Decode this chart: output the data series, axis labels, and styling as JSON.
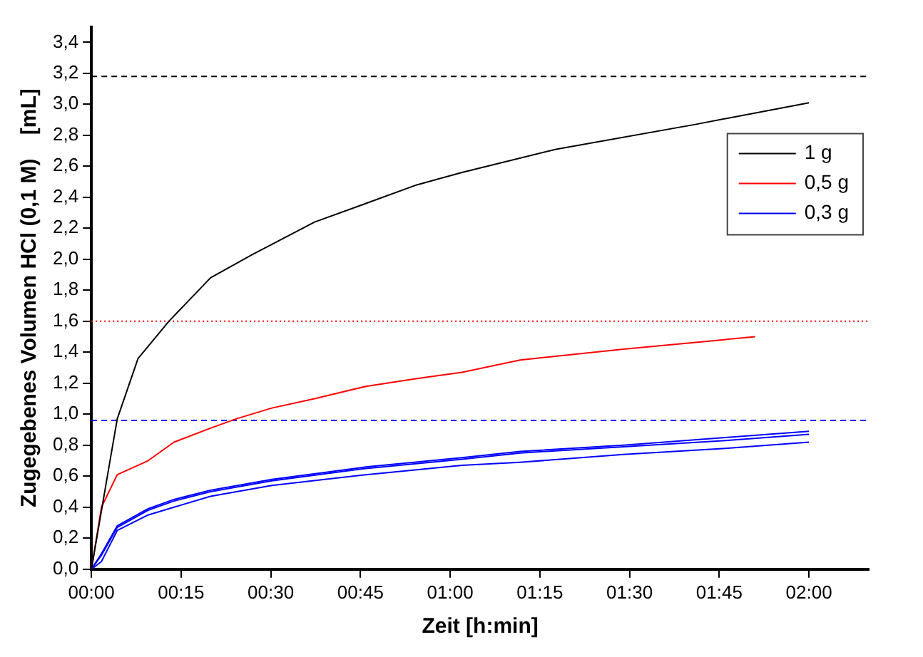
{
  "chart_data": {
    "type": "line",
    "xlabel": "Zeit [h:min]",
    "ylabel": "Zugegebenes Volumen HCl (0,1 M)    [mL]",
    "xlim": [
      0,
      2.1667
    ],
    "ylim": [
      0,
      3.5
    ],
    "xticks": [
      {
        "value": 0,
        "label": "00:00"
      },
      {
        "value": 0.25,
        "label": "00:15"
      },
      {
        "value": 0.5,
        "label": "00:30"
      },
      {
        "value": 0.75,
        "label": "00:45"
      },
      {
        "value": 1,
        "label": "01:00"
      },
      {
        "value": 1.25,
        "label": "01:15"
      },
      {
        "value": 1.5,
        "label": "01:30"
      },
      {
        "value": 1.75,
        "label": "01:45"
      },
      {
        "value": 2,
        "label": "02:00"
      }
    ],
    "yticks": [
      {
        "value": 0,
        "label": "0,0"
      },
      {
        "value": 0.2,
        "label": "0,2"
      },
      {
        "value": 0.4,
        "label": "0,4"
      },
      {
        "value": 0.6,
        "label": "0,6"
      },
      {
        "value": 0.8,
        "label": "0,8"
      },
      {
        "value": 1,
        "label": "1,0"
      },
      {
        "value": 1.2,
        "label": "1,2"
      },
      {
        "value": 1.4,
        "label": "1,4"
      },
      {
        "value": 1.6,
        "label": "1,6"
      },
      {
        "value": 1.8,
        "label": "1,8"
      },
      {
        "value": 2,
        "label": "2,0"
      },
      {
        "value": 2.2,
        "label": "2,2"
      },
      {
        "value": 2.4,
        "label": "2,4"
      },
      {
        "value": 2.6,
        "label": "2,6"
      },
      {
        "value": 2.8,
        "label": "2,8"
      },
      {
        "value": 3,
        "label": "3,0"
      },
      {
        "value": 3.2,
        "label": "3,2"
      },
      {
        "value": 3.4,
        "label": "3,4"
      }
    ],
    "grid": false,
    "legend": "top right",
    "marker": "none",
    "line_style": "solid",
    "series": [
      {
        "name": "1 g",
        "color": "#000000",
        "x": [
          0,
          0.043,
          0.072,
          0.13,
          0.216,
          0.332,
          0.448,
          0.622,
          0.765,
          0.907,
          1.033,
          1.295,
          1.683,
          2.0
        ],
        "values": [
          0,
          0.58,
          0.97,
          1.36,
          1.6,
          1.88,
          2.03,
          2.24,
          2.36,
          2.48,
          2.56,
          2.71,
          2.87,
          3.01
        ]
      },
      {
        "name": "0,5 g",
        "color": "#ff0000",
        "x": [
          0,
          0.028,
          0.072,
          0.158,
          0.23,
          0.332,
          0.403,
          0.503,
          0.622,
          0.765,
          0.907,
          1.033,
          1.195,
          1.483,
          1.85
        ],
        "values": [
          0,
          0.4,
          0.61,
          0.7,
          0.82,
          0.91,
          0.97,
          1.04,
          1.1,
          1.18,
          1.23,
          1.27,
          1.35,
          1.42,
          1.5
        ]
      },
      {
        "name": "0,3 g",
        "color": "#0000ff",
        "x": [
          0,
          0.028,
          0.072,
          0.158,
          0.23,
          0.332,
          0.503,
          0.765,
          1.033,
          1.195,
          1.483,
          1.767,
          2.0
        ],
        "values": [
          0,
          0.1,
          0.28,
          0.39,
          0.45,
          0.51,
          0.58,
          0.66,
          0.72,
          0.76,
          0.8,
          0.85,
          0.89
        ]
      },
      {
        "color": "#0000ff",
        "x": [
          0,
          0.028,
          0.072,
          0.158,
          0.23,
          0.332,
          0.503,
          0.765,
          1.033,
          1.195,
          1.483,
          1.767,
          2.0
        ],
        "values": [
          0,
          0.09,
          0.27,
          0.38,
          0.44,
          0.5,
          0.57,
          0.65,
          0.71,
          0.75,
          0.79,
          0.83,
          0.87
        ]
      },
      {
        "color": "#0000ff",
        "x": [
          0,
          0.028,
          0.072,
          0.158,
          0.23,
          0.332,
          0.503,
          0.765,
          1.033,
          1.195,
          1.483,
          1.767,
          2.0
        ],
        "values": [
          0,
          0.05,
          0.25,
          0.35,
          0.4,
          0.47,
          0.54,
          0.61,
          0.67,
          0.69,
          0.74,
          0.78,
          0.82
        ]
      }
    ],
    "ref_lines": [
      {
        "axis": "y",
        "value": 3.18,
        "color": "#000000",
        "line_style": "dashed"
      },
      {
        "axis": "y",
        "value": 1.6,
        "color": "#ff0000",
        "line_style": "dotted"
      },
      {
        "axis": "y",
        "value": 0.96,
        "color": "#0000ff",
        "line_style": "dashed"
      }
    ]
  }
}
